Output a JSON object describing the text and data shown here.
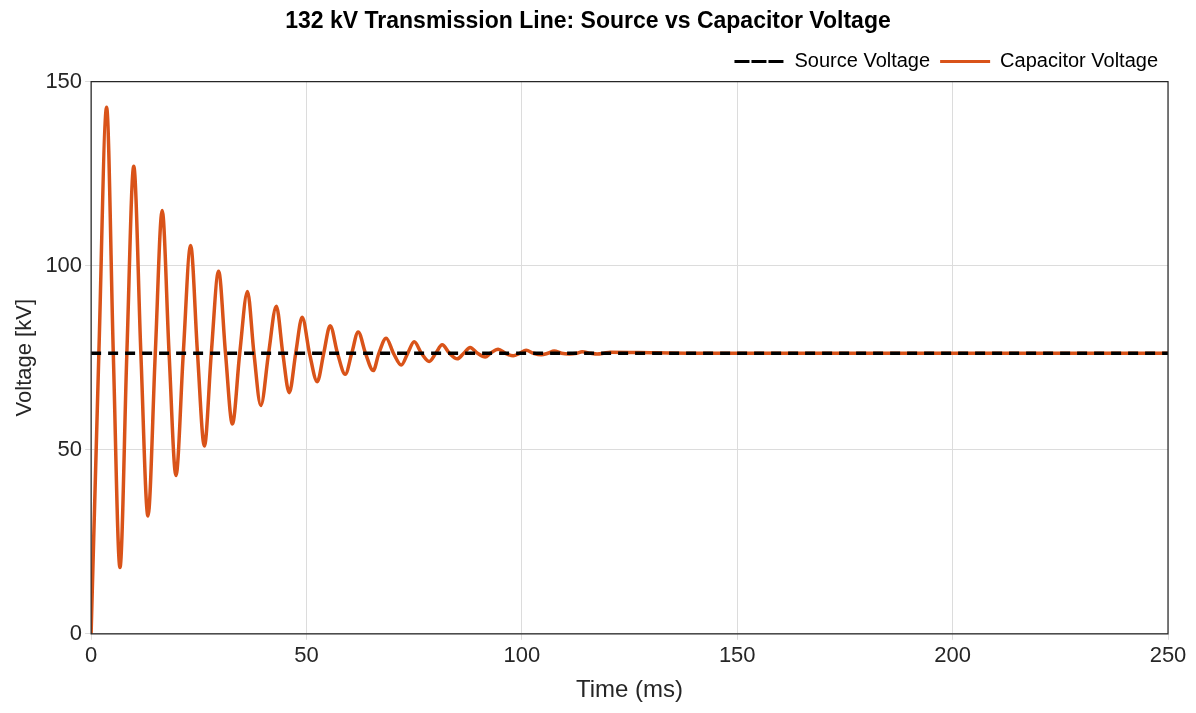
{
  "chart_data": {
    "type": "line",
    "title": "132 kV Transmission Line: Source vs Capacitor Voltage",
    "xlabel": "Time (ms)",
    "ylabel": "Voltage [kV]",
    "xlim": [
      0,
      250
    ],
    "xticks": [
      0,
      50,
      100,
      150,
      200,
      250
    ],
    "ylim": [
      0,
      150
    ],
    "yticks": [
      0,
      50,
      100,
      150
    ],
    "grid": true,
    "legend": "top right",
    "marker": "none",
    "series": [
      {
        "name": "Source Voltage",
        "color": "#000000",
        "line_style": "dashed",
        "x": [
          0,
          250
        ],
        "values": [
          76.2,
          76.2
        ]
      },
      {
        "name": "Capacitor Voltage",
        "color": "#d95319",
        "line_style": "solid",
        "x": [
          0,
          1.8,
          3.6,
          5.15,
          6.7,
          8.3,
          9.9,
          11.55,
          13.2,
          14.9,
          16.5,
          18.1,
          19.7,
          21.4,
          23.1,
          24.7,
          26.3,
          27.9,
          29.6,
          31.2,
          32.8,
          34.5,
          36.3,
          37.8,
          39.4,
          41.2,
          43,
          44.5,
          46,
          47.5,
          49,
          50.7,
          52.5,
          54,
          55.5,
          57.2,
          59,
          60.5,
          62,
          63.7,
          65.5,
          66.8,
          68.5,
          70.2,
          72,
          73.5,
          75,
          76.7,
          78.5,
          80,
          81.5,
          83.2,
          85,
          86.5,
          88,
          89.7,
          91.5,
          92.7,
          94.5,
          96.2,
          98,
          99.5,
          101,
          102.7,
          104.5,
          106,
          107.5,
          109.2,
          111,
          112.7,
          114,
          116,
          117.5,
          119,
          120.5,
          127,
          140,
          250
        ],
        "values": [
          0,
          76.2,
          143,
          76.2,
          18,
          76.2,
          127,
          76.2,
          32,
          76.2,
          115,
          76.2,
          43,
          76.2,
          105.5,
          76.2,
          51,
          76.2,
          98.5,
          76.2,
          57,
          76.2,
          93,
          76.2,
          62,
          76.2,
          89,
          76.2,
          65.5,
          76.2,
          86,
          76.2,
          68.5,
          76.2,
          83.7,
          76.2,
          70.5,
          76.2,
          82,
          76.2,
          71.5,
          76.2,
          80.3,
          76.2,
          73,
          76.2,
          79.3,
          76.2,
          74,
          76.2,
          78.5,
          76.2,
          74.7,
          76.2,
          77.8,
          76.2,
          75.2,
          76.2,
          77.3,
          76.2,
          75.5,
          76.2,
          77,
          76.2,
          75.8,
          76.2,
          76.8,
          76.2,
          76,
          76.2,
          76.6,
          76.2,
          76,
          76.2,
          76.5,
          76.4,
          76.2,
          76.2
        ]
      }
    ]
  }
}
